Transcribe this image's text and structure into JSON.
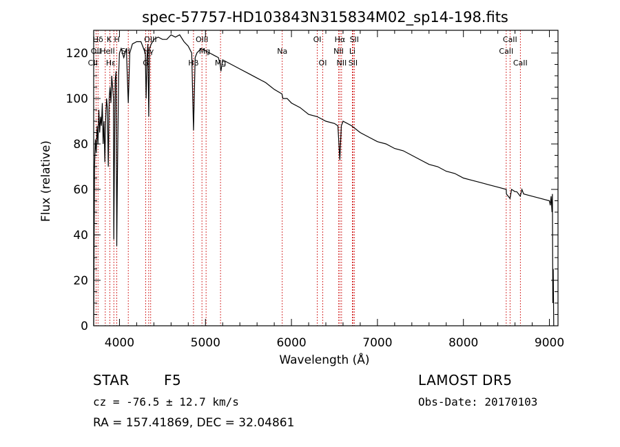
{
  "chart_data": {
    "type": "line",
    "title": "spec-57757-HD103843N315834M02_sp14-198.fits",
    "xlabel": "Wavelength (Å)",
    "ylabel": "Flux (relative)",
    "xlim": [
      3700,
      9100
    ],
    "ylim": [
      0,
      130
    ],
    "xticks": [
      4000,
      5000,
      6000,
      7000,
      8000,
      9000
    ],
    "yticks": [
      0,
      20,
      40,
      60,
      80,
      100,
      120
    ],
    "series": [
      {
        "x": [
          3700,
          3710,
          3720,
          3730,
          3740,
          3750,
          3760,
          3770,
          3780,
          3790,
          3800,
          3810,
          3820,
          3830,
          3840,
          3850,
          3860,
          3870,
          3880,
          3890,
          3900,
          3910,
          3920,
          3930,
          3934,
          3940,
          3950,
          3960,
          3968,
          3975,
          3990,
          4000,
          4020,
          4050,
          4080,
          4102,
          4120,
          4150,
          4200,
          4250,
          4300,
          4310,
          4320,
          4330,
          4340,
          4350,
          4370,
          4400,
          4450,
          4500,
          4550,
          4600,
          4650,
          4700,
          4750,
          4800,
          4840,
          4861,
          4880,
          4900,
          4950,
          5000,
          5050,
          5100,
          5150,
          5170,
          5180,
          5200,
          5300,
          5400,
          5500,
          5600,
          5700,
          5800,
          5890,
          5900,
          5950,
          6000,
          6100,
          6200,
          6300,
          6400,
          6500,
          6540,
          6563,
          6580,
          6600,
          6700,
          6800,
          6900,
          7000,
          7100,
          7200,
          7300,
          7400,
          7500,
          7600,
          7700,
          7800,
          7900,
          8000,
          8100,
          8200,
          8300,
          8400,
          8498,
          8500,
          8542,
          8560,
          8600,
          8620,
          8662,
          8680,
          8700,
          8800,
          8900,
          9000,
          9010,
          9020,
          9030,
          9035,
          9040,
          9045,
          9050
        ],
        "y": [
          0,
          70,
          82,
          76,
          88,
          80,
          95,
          85,
          92,
          88,
          98,
          80,
          90,
          72,
          92,
          100,
          95,
          70,
          100,
          105,
          98,
          110,
          105,
          100,
          38,
          70,
          108,
          112,
          35,
          62,
          110,
          120,
          122,
          118,
          122,
          98,
          120,
          124,
          125,
          125,
          120,
          100,
          118,
          124,
          92,
          122,
          124,
          126,
          127,
          126,
          126,
          128,
          127,
          128,
          125,
          123,
          120,
          86,
          118,
          120,
          122,
          121,
          120,
          119,
          118,
          115,
          112,
          117,
          115,
          113,
          111,
          109,
          107,
          104,
          102,
          100,
          100,
          98,
          96,
          93,
          92,
          90,
          89,
          88,
          73,
          88,
          90,
          88,
          85,
          83,
          81,
          80,
          78,
          77,
          75,
          73,
          71,
          70,
          68,
          67,
          65,
          64,
          63,
          62,
          61,
          60,
          58,
          56,
          60,
          59,
          59,
          57,
          60,
          58,
          57,
          56,
          55,
          53,
          57,
          50,
          58,
          10,
          25,
          0
        ]
      }
    ],
    "annotations": [
      {
        "label": "Hδ",
        "x": 3750,
        "row": 1
      },
      {
        "label": "K",
        "x": 3880,
        "row": 1
      },
      {
        "label": "H",
        "x": 3970,
        "row": 1
      },
      {
        "label": "OII",
        "x": 3727,
        "row": 2
      },
      {
        "label": "HeII",
        "x": 3860,
        "row": 2
      },
      {
        "label": "SII",
        "x": 4070,
        "row": 2
      },
      {
        "label": "OIII",
        "x": 4360,
        "row": 1
      },
      {
        "label": "Hγ",
        "x": 4340,
        "row": 2
      },
      {
        "label": "CII",
        "x": 3690,
        "row": 3
      },
      {
        "label": "Hε",
        "x": 3900,
        "row": 3
      },
      {
        "label": "G",
        "x": 4305,
        "row": 3
      },
      {
        "label": "OIII",
        "x": 4959,
        "row": 1
      },
      {
        "label": "Mg",
        "x": 4990,
        "row": 2
      },
      {
        "label": "Hβ",
        "x": 4861,
        "row": 3
      },
      {
        "label": "Mg",
        "x": 5175,
        "row": 3
      },
      {
        "label": "Na",
        "x": 5893,
        "row": 2
      },
      {
        "label": "OI",
        "x": 6300,
        "row": 1
      },
      {
        "label": "OI",
        "x": 6364,
        "row": 3
      },
      {
        "label": "Hα",
        "x": 6563,
        "row": 1
      },
      {
        "label": "SII",
        "x": 6731,
        "row": 1
      },
      {
        "label": "NII",
        "x": 6548,
        "row": 2
      },
      {
        "label": "Li",
        "x": 6708,
        "row": 2
      },
      {
        "label": "NII",
        "x": 6583,
        "row": 3
      },
      {
        "label": "SII",
        "x": 6716,
        "row": 3
      },
      {
        "label": "CaII",
        "x": 8542,
        "row": 1
      },
      {
        "label": "CaII",
        "x": 8498,
        "row": 2
      },
      {
        "label": "CaII",
        "x": 8662,
        "row": 3
      }
    ],
    "line_markers": [
      3727,
      3750,
      3835,
      3889,
      3934,
      3968,
      4102,
      4305,
      4340,
      4363,
      4861,
      4959,
      5007,
      5175,
      5893,
      6300,
      6364,
      6548,
      6563,
      6583,
      6708,
      6716,
      6731,
      8498,
      8542,
      8662
    ],
    "grid": false,
    "colors": {
      "spectrum": "#000000",
      "markers": "#cc0000",
      "frame": "#000000"
    }
  },
  "info": {
    "object_class": "STAR",
    "subclass": "F5",
    "survey": "LAMOST DR5",
    "redshift": "cz = -76.5 ± 12.7 km/s",
    "obs_date": "Obs-Date: 20170103",
    "coords": "RA = 157.41869, DEC =  32.04861"
  }
}
